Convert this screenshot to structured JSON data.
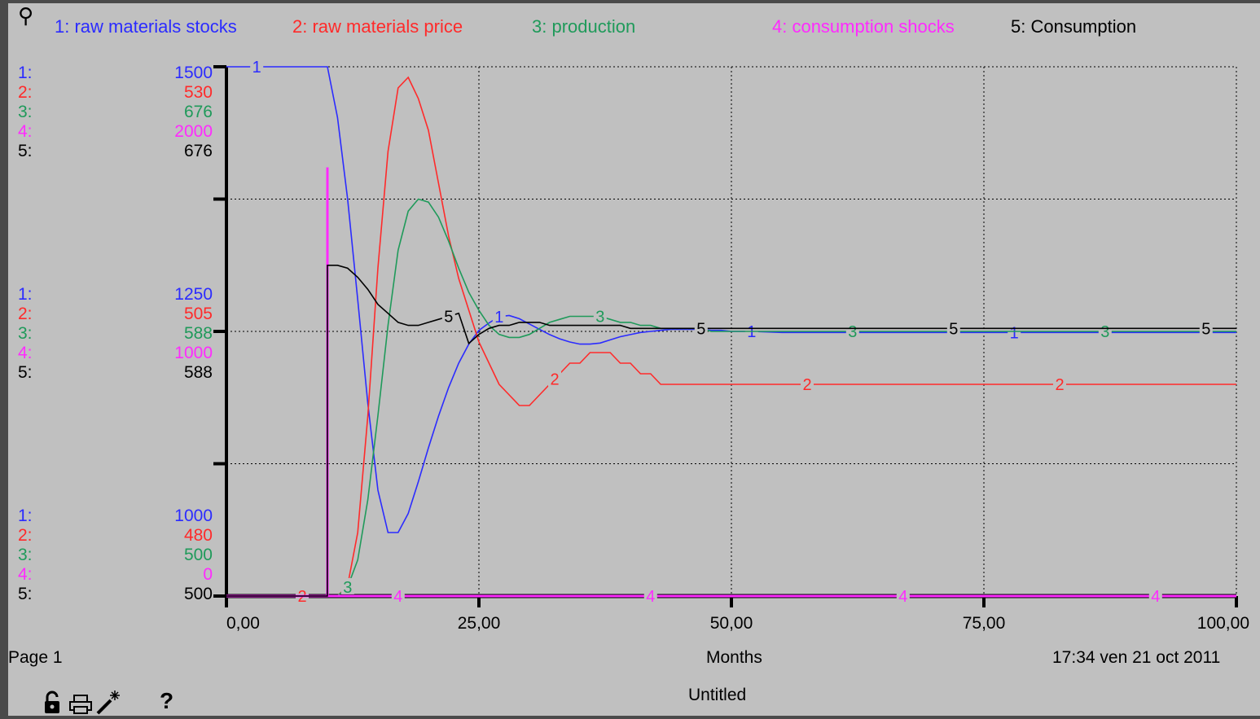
{
  "colors": {
    "s1": "#2b2bff",
    "s2": "#ff2a2a",
    "s3": "#1f9a5a",
    "s4": "#ff2aff",
    "s5": "#000000",
    "background": "#c0c0c0",
    "frame": "#4a4a4a"
  },
  "legend": [
    {
      "index": "1",
      "label": "1: raw materials stocks"
    },
    {
      "index": "2",
      "label": "2: raw materials price"
    },
    {
      "index": "3",
      "label": "3: production"
    },
    {
      "index": "4",
      "label": "4: consumption shocks"
    },
    {
      "index": "5",
      "label": "5: Consumption"
    }
  ],
  "scales": {
    "top": [
      "1500",
      "530",
      "676",
      "2000",
      "676"
    ],
    "middle": [
      "1250",
      "505",
      "588",
      "1000",
      "588"
    ],
    "bottom": [
      "1000",
      "480",
      "500",
      "0",
      "500"
    ]
  },
  "scale_indices": [
    "1:",
    "2:",
    "3:",
    "4:",
    "5:"
  ],
  "x_ticks": [
    "0,00",
    "25,00",
    "50,00",
    "75,00",
    "100,00"
  ],
  "footer": {
    "page": "Page 1",
    "xlabel": "Months",
    "timestamp": "17:34   ven 21 oct 2011",
    "title": "Untitled"
  },
  "toolbar": {
    "lock_icon": "lock-icon",
    "print_icon": "print-icon",
    "wand_icon": "magic-wand-icon",
    "help_icon": "help-icon",
    "help_label": "?"
  },
  "chart_data": {
    "type": "line",
    "xlabel": "Months",
    "xlim": [
      0,
      100
    ],
    "grid": true,
    "legend_position": "top",
    "series": [
      {
        "name": "1: raw materials stocks",
        "range": [
          1000,
          1500
        ],
        "x": [
          0,
          10,
          11,
          12,
          13,
          14,
          15,
          16,
          17,
          18,
          19,
          20,
          21,
          22,
          23,
          24,
          25,
          26,
          27,
          28,
          29,
          30,
          31,
          32,
          33,
          34,
          35,
          36,
          37,
          38,
          39,
          40,
          41,
          42,
          43,
          44,
          45,
          46,
          47,
          48,
          49,
          50,
          52,
          55,
          60,
          65,
          70,
          80,
          90,
          100
        ],
        "y": [
          1500,
          1500,
          1452,
          1375,
          1280,
          1182,
          1100,
          1060,
          1060,
          1078,
          1108,
          1140,
          1170,
          1197,
          1220,
          1238,
          1251,
          1258,
          1264,
          1265,
          1262,
          1257,
          1252,
          1247,
          1243,
          1240,
          1238,
          1238,
          1239,
          1242,
          1245,
          1247,
          1249,
          1250,
          1251,
          1252,
          1252,
          1252,
          1252,
          1251,
          1251,
          1250,
          1250,
          1249,
          1249,
          1249,
          1249,
          1249,
          1249,
          1249
        ]
      },
      {
        "name": "2: raw materials price",
        "range": [
          480,
          530
        ],
        "x": [
          0,
          10,
          11,
          12,
          13,
          14,
          15,
          16,
          17,
          18,
          19,
          20,
          21,
          22,
          23,
          24,
          25,
          26,
          27,
          28,
          29,
          30,
          31,
          32,
          33,
          34,
          35,
          36,
          37,
          38,
          39,
          40,
          41,
          42,
          43,
          44,
          45,
          46,
          47,
          48,
          49,
          50,
          52,
          55,
          60,
          65,
          70,
          80,
          90,
          100
        ],
        "y": [
          480,
          480,
          480,
          481,
          486,
          497,
          511,
          522,
          528,
          529,
          527,
          524,
          519,
          514,
          510,
          507,
          504,
          502,
          500,
          499,
          498,
          498,
          499,
          500,
          501,
          502,
          502,
          503,
          503,
          503,
          502,
          502,
          501,
          501,
          500,
          500,
          500,
          500,
          500,
          500,
          500,
          500,
          500,
          500,
          500,
          500,
          500,
          500,
          500,
          500
        ]
      },
      {
        "name": "3: production",
        "range": [
          500,
          676
        ],
        "x": [
          0,
          10,
          11,
          12,
          13,
          14,
          15,
          16,
          17,
          18,
          19,
          20,
          21,
          22,
          23,
          24,
          25,
          26,
          27,
          28,
          29,
          30,
          31,
          32,
          33,
          34,
          35,
          36,
          37,
          38,
          39,
          40,
          41,
          42,
          43,
          44,
          45,
          46,
          47,
          48,
          49,
          50,
          52,
          55,
          60,
          65,
          70,
          80,
          90,
          100
        ],
        "y": [
          500,
          500,
          500,
          503,
          512,
          532,
          560,
          590,
          615,
          628,
          632,
          631,
          626,
          618,
          609,
          601,
          595,
          590,
          587,
          586,
          586,
          587,
          589,
          591,
          592,
          593,
          593,
          593,
          593,
          592,
          591,
          591,
          590,
          590,
          589,
          589,
          589,
          589,
          589,
          588,
          588,
          588,
          588,
          588,
          588,
          588,
          588,
          588,
          588,
          588
        ]
      },
      {
        "name": "4: consumption shocks",
        "range": [
          0,
          2000
        ],
        "x": [
          0,
          9.99,
          10,
          10.01,
          100
        ],
        "y": [
          0,
          0,
          1620,
          0,
          0
        ]
      },
      {
        "name": "5: Consumption",
        "range": [
          500,
          676
        ],
        "x": [
          0,
          9.99,
          10,
          11,
          12,
          13,
          14,
          15,
          16,
          17,
          18,
          19,
          20,
          21,
          22,
          23,
          24,
          25,
          26,
          27,
          28,
          29,
          30,
          31,
          32,
          33,
          34,
          35,
          36,
          37,
          38,
          39,
          40,
          42,
          45,
          50,
          60,
          70,
          80,
          90,
          100
        ],
        "y": [
          500,
          500,
          610,
          610,
          609,
          606,
          602,
          597,
          594,
          591,
          590,
          590,
          591,
          592,
          593,
          594,
          584,
          587,
          589,
          590,
          590,
          591,
          591,
          591,
          590,
          590,
          590,
          590,
          590,
          590,
          590,
          590,
          589,
          589,
          589,
          589,
          589,
          589,
          589,
          589,
          589
        ]
      }
    ]
  }
}
